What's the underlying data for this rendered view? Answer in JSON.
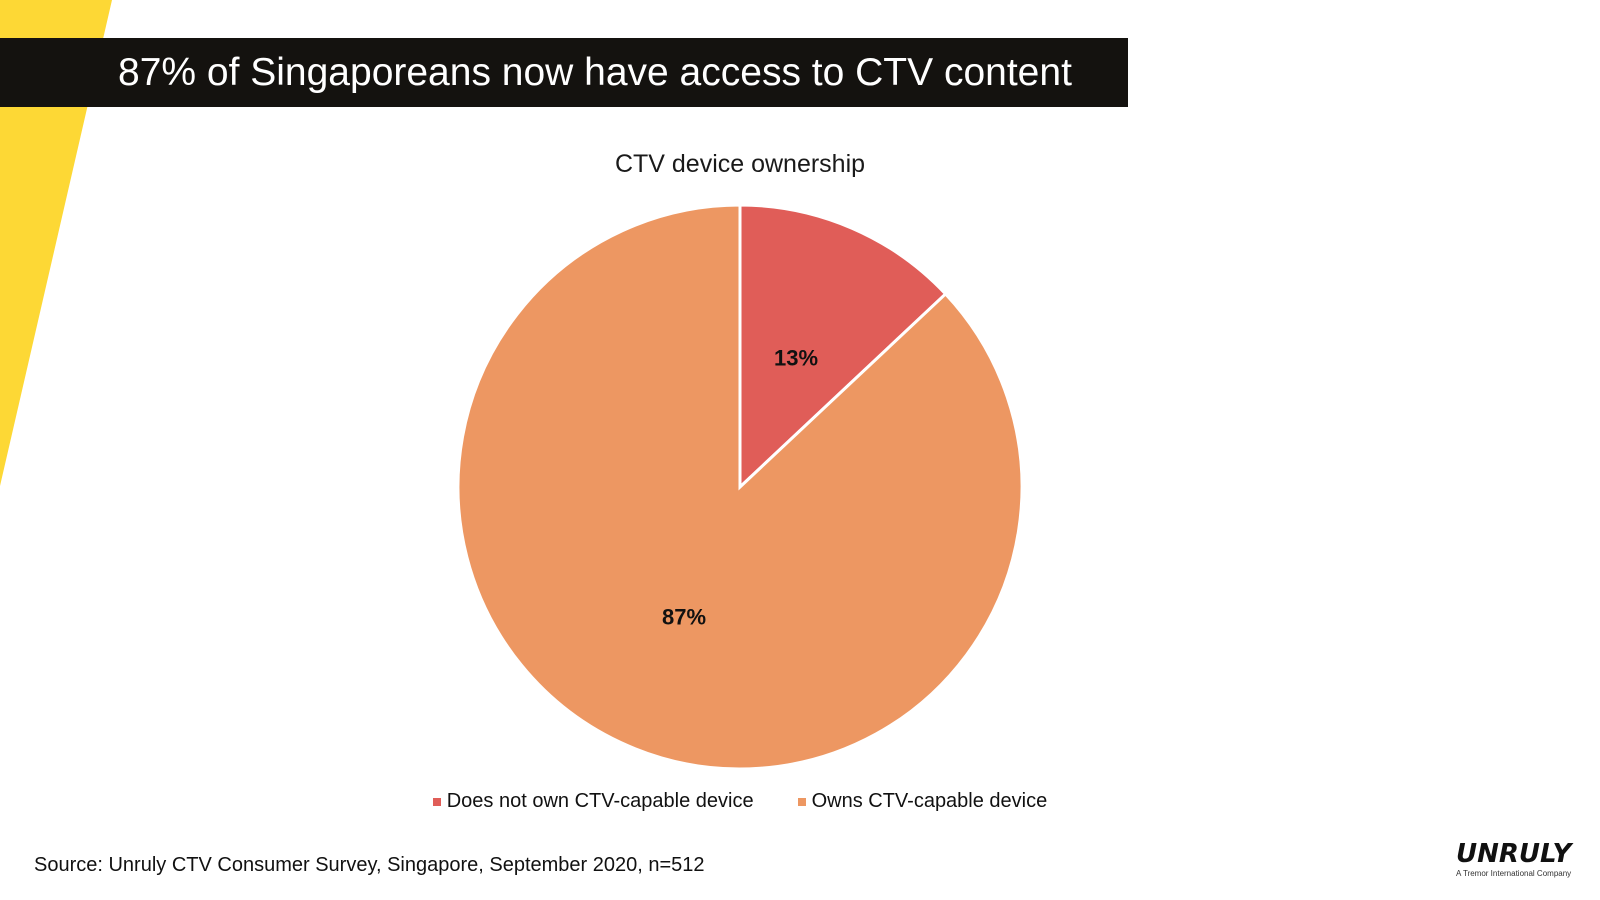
{
  "header": {
    "title": "87% of Singaporeans now have access to CTV content"
  },
  "colors": {
    "stripe": "#FDD835",
    "title_bg": "#14120f"
  },
  "chart_data": {
    "type": "pie",
    "title": "CTV device ownership",
    "slices": [
      {
        "label": "Does not own CTV-capable device",
        "value": 13,
        "display": "13%",
        "color": "#E05D58"
      },
      {
        "label": "Owns CTV-capable device",
        "value": 87,
        "display": "87%",
        "color": "#ED9762"
      }
    ],
    "legend_position": "bottom"
  },
  "footer": {
    "source": "Source: Unruly CTV Consumer Survey, Singapore, September 2020, n=512"
  },
  "logo": {
    "word": "UNRULY",
    "tagline": "A Tremor International Company"
  }
}
